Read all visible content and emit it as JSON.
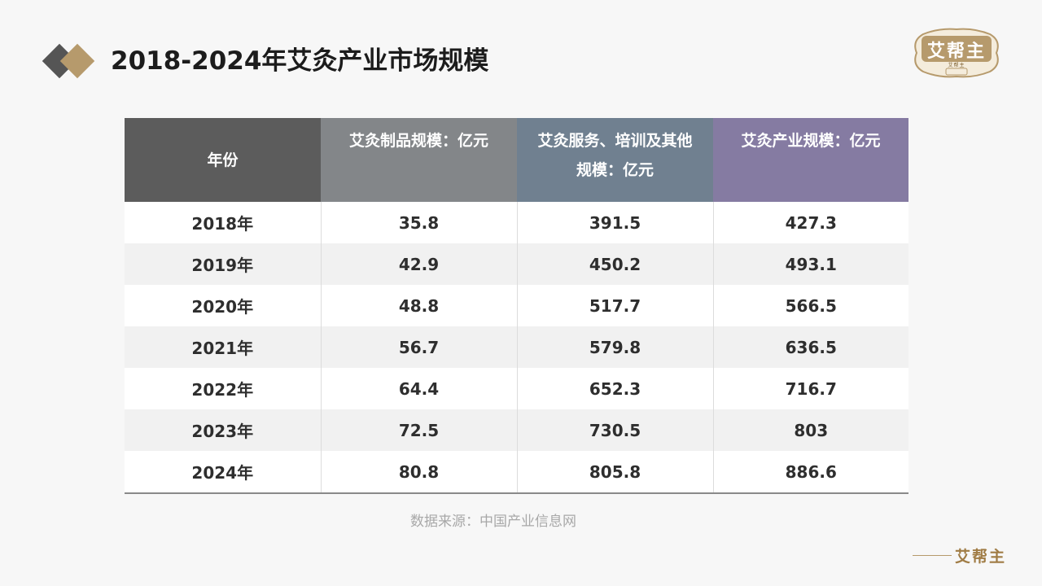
{
  "header": {
    "title": "2018-2024年艾灸产业市场规模"
  },
  "logo": {
    "name": "艾帮主",
    "tagline": "艾帮主"
  },
  "table": {
    "columns": [
      "年份",
      "艾灸制品规模：亿元",
      "艾灸服务、培训及其他规模：亿元",
      "艾灸产业规模：亿元"
    ],
    "rows": [
      [
        "2018年",
        "35.8",
        "391.5",
        "427.3"
      ],
      [
        "2019年",
        "42.9",
        "450.2",
        "493.1"
      ],
      [
        "2020年",
        "48.8",
        "517.7",
        "566.5"
      ],
      [
        "2021年",
        "56.7",
        "579.8",
        "636.5"
      ],
      [
        "2022年",
        "64.4",
        "652.3",
        "716.7"
      ],
      [
        "2023年",
        "72.5",
        "730.5",
        "803"
      ],
      [
        "2024年",
        "80.8",
        "805.8",
        "886.6"
      ]
    ]
  },
  "footer": {
    "source": "数据来源：中国产业信息网",
    "brand": "艾帮主"
  },
  "colors": {
    "gold": "#b69a6c",
    "dark_gray": "#555555",
    "header_col1": "#5c5c5c",
    "header_col2": "#838689",
    "header_col3": "#708090",
    "header_col4": "#857ba2"
  }
}
